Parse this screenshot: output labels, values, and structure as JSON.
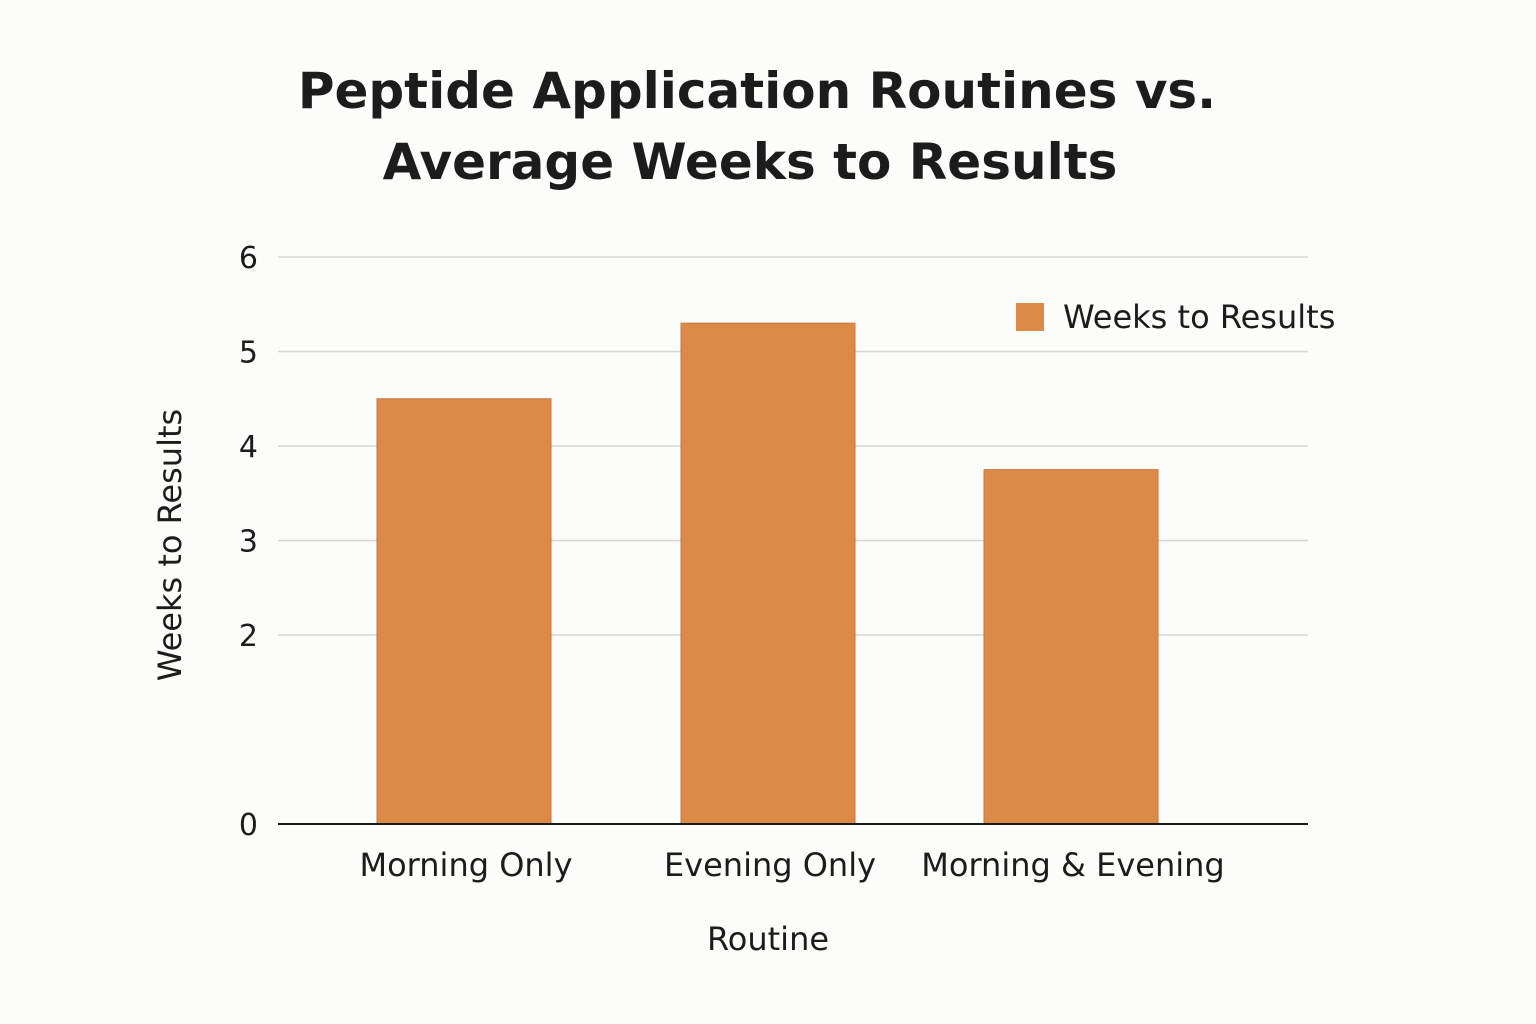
{
  "colors": {
    "bar": "#db8a47",
    "bar_stroke": "#c9773a",
    "grid": "#d6d6d6",
    "text": "#1c1c1c",
    "background": "#fcfcfa"
  },
  "chart_data": {
    "type": "bar",
    "title": "Peptide Application Routines vs. Average Weeks to Results",
    "title_lines": [
      "Peptide Application Routines vs.",
      "Average Weeks to Results"
    ],
    "xlabel": "Routine",
    "ylabel": "Weeks to Results",
    "categories": [
      "Morning Only",
      "Evening Only",
      "Morning & Evening"
    ],
    "series": [
      {
        "name": "Weeks to Results",
        "values": [
          4.5,
          5.3,
          3.75
        ]
      }
    ],
    "ylim": [
      0,
      6
    ],
    "yticks": [
      0,
      2,
      3,
      4,
      5,
      6
    ],
    "grid": true,
    "legend": "top-right"
  }
}
